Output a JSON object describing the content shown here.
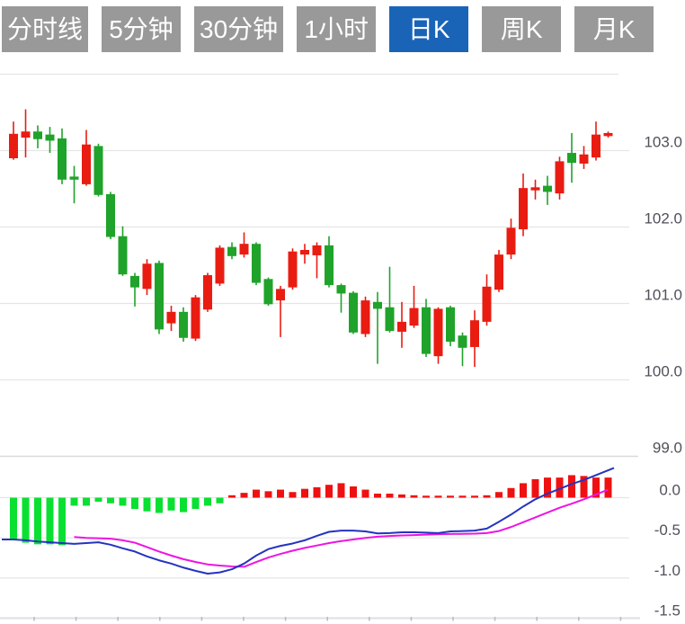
{
  "toolbar": {
    "buttons": [
      {
        "label": "分时线",
        "active": false
      },
      {
        "label": "5分钟",
        "active": false
      },
      {
        "label": "30分钟",
        "active": false
      },
      {
        "label": "1小时",
        "active": false
      },
      {
        "label": "日K",
        "active": true
      },
      {
        "label": "周K",
        "active": false
      },
      {
        "label": "月K",
        "active": false
      }
    ]
  },
  "colors": {
    "up": "#e91c12",
    "down": "#1fa32a",
    "macd_up": "#ef1111",
    "macd_down": "#0ae032",
    "dif_line": "#2433c0",
    "dea_line": "#ee14e2",
    "grid": "#e5e5e7",
    "panel_divider": "#d9d9dc",
    "bottom_axis": "#dcdfe4",
    "tick": "#b6bdc8",
    "axis_text": "#50505a",
    "button_bg": "#999999",
    "button_active_bg": "#1a64b8",
    "button_text": "#ffffff"
  },
  "chart_data": {
    "type": "candlestick+macd",
    "title": "",
    "legend": "none",
    "grid": "on",
    "price_axis": {
      "side": "right",
      "range_shown": [
        99.0,
        104.0
      ],
      "gridline_values": [
        104,
        103,
        102,
        101,
        100,
        99
      ],
      "labels": [
        {
          "text": "103.0",
          "value": 103
        },
        {
          "text": "102.0",
          "value": 102
        },
        {
          "text": "101.0",
          "value": 101
        },
        {
          "text": "100.0",
          "value": 100
        },
        {
          "text": "99.0",
          "value": 99
        }
      ]
    },
    "macd_axis": {
      "side": "right",
      "range_shown": [
        -1.5,
        0.6
      ],
      "gridline_values": [
        0,
        -0.5,
        -1
      ],
      "labels": [
        {
          "text": "0.0",
          "value": 0
        },
        {
          "text": "-0.5",
          "value": -0.5
        },
        {
          "text": "-1.0",
          "value": -1
        },
        {
          "text": "-1.5",
          "value": -1.5
        }
      ]
    },
    "candles_ohlc_note": "each entry is [open, high, low, close]; red=rise green=fall (CN convention)",
    "candles": [
      [
        102.9,
        103.38,
        102.88,
        103.22
      ],
      [
        103.17,
        103.54,
        102.91,
        103.25
      ],
      [
        103.25,
        103.33,
        103.03,
        103.15
      ],
      [
        103.21,
        103.31,
        102.97,
        103.13
      ],
      [
        103.16,
        103.29,
        102.56,
        102.62
      ],
      [
        102.66,
        102.8,
        102.31,
        102.62
      ],
      [
        102.56,
        103.27,
        102.54,
        103.08
      ],
      [
        103.06,
        103.09,
        102.4,
        102.42
      ],
      [
        102.43,
        102.46,
        101.84,
        101.87
      ],
      [
        101.88,
        102.01,
        101.36,
        101.38
      ],
      [
        101.36,
        101.4,
        100.96,
        101.21
      ],
      [
        101.19,
        101.58,
        101.11,
        101.52
      ],
      [
        101.53,
        101.56,
        100.6,
        100.66
      ],
      [
        100.74,
        100.97,
        100.64,
        100.89
      ],
      [
        100.89,
        100.95,
        100.5,
        100.55
      ],
      [
        100.54,
        101.11,
        100.51,
        101.08
      ],
      [
        100.92,
        101.4,
        100.89,
        101.37
      ],
      [
        101.26,
        101.76,
        101.23,
        101.73
      ],
      [
        101.74,
        101.8,
        101.58,
        101.62
      ],
      [
        101.64,
        101.93,
        101.6,
        101.78
      ],
      [
        101.78,
        101.8,
        101.24,
        101.27
      ],
      [
        101.32,
        101.34,
        100.97,
        100.99
      ],
      [
        101.04,
        101.23,
        100.56,
        101.19
      ],
      [
        101.21,
        101.72,
        101.18,
        101.68
      ],
      [
        101.64,
        101.78,
        101.52,
        101.7
      ],
      [
        101.63,
        101.8,
        101.33,
        101.76
      ],
      [
        101.76,
        101.88,
        101.21,
        101.24
      ],
      [
        101.24,
        101.26,
        100.88,
        101.13
      ],
      [
        101.14,
        101.16,
        100.6,
        100.62
      ],
      [
        100.6,
        101.09,
        100.56,
        101.04
      ],
      [
        101.02,
        101.15,
        100.21,
        100.93
      ],
      [
        100.95,
        101.48,
        100.62,
        100.64
      ],
      [
        100.63,
        101.02,
        100.42,
        100.76
      ],
      [
        100.71,
        101.23,
        100.68,
        100.94
      ],
      [
        100.95,
        101.06,
        100.3,
        100.34
      ],
      [
        100.31,
        100.95,
        100.21,
        100.93
      ],
      [
        100.95,
        100.97,
        100.44,
        100.5
      ],
      [
        100.58,
        100.62,
        100.18,
        100.42
      ],
      [
        100.43,
        100.91,
        100.17,
        100.78
      ],
      [
        100.76,
        101.38,
        100.71,
        101.22
      ],
      [
        101.18,
        101.7,
        101.15,
        101.64
      ],
      [
        101.64,
        102.11,
        101.58,
        101.99
      ],
      [
        101.97,
        102.7,
        101.88,
        102.51
      ],
      [
        102.48,
        102.62,
        102.36,
        102.52
      ],
      [
        102.54,
        102.67,
        102.29,
        102.46
      ],
      [
        102.44,
        102.92,
        102.36,
        102.86
      ],
      [
        102.97,
        103.23,
        102.58,
        102.84
      ],
      [
        102.83,
        103.06,
        102.76,
        102.95
      ],
      [
        102.91,
        103.38,
        102.87,
        103.21
      ],
      [
        103.19,
        103.25,
        103.17,
        103.23
      ]
    ],
    "macd": {
      "histogram": [
        -0.53,
        -0.56,
        -0.58,
        -0.58,
        -0.59,
        -0.1,
        -0.1,
        -0.05,
        -0.07,
        -0.1,
        -0.14,
        -0.17,
        -0.19,
        -0.16,
        -0.18,
        -0.14,
        -0.1,
        -0.07,
        0.03,
        0.06,
        0.1,
        0.08,
        0.1,
        0.07,
        0.11,
        0.13,
        0.16,
        0.18,
        0.14,
        0.1,
        0.05,
        0.05,
        0.04,
        0.03,
        0.02,
        0.01,
        0.02,
        0.02,
        0.02,
        0.03,
        0.07,
        0.12,
        0.18,
        0.23,
        0.25,
        0.25,
        0.28,
        0.27,
        0.25,
        0.25
      ],
      "dif": [
        -0.52,
        -0.53,
        -0.545,
        -0.555,
        -0.565,
        -0.575,
        -0.565,
        -0.555,
        -0.585,
        -0.63,
        -0.67,
        -0.73,
        -0.78,
        -0.82,
        -0.87,
        -0.91,
        -0.945,
        -0.93,
        -0.89,
        -0.82,
        -0.72,
        -0.64,
        -0.6,
        -0.57,
        -0.53,
        -0.475,
        -0.425,
        -0.41,
        -0.41,
        -0.42,
        -0.445,
        -0.44,
        -0.43,
        -0.43,
        -0.435,
        -0.44,
        -0.42,
        -0.415,
        -0.41,
        -0.385,
        -0.3,
        -0.21,
        -0.11,
        -0.02,
        0.05,
        0.11,
        0.17,
        0.22,
        0.28,
        0.34
      ],
      "dea": [
        null,
        null,
        null,
        null,
        null,
        -0.49,
        -0.5,
        -0.505,
        -0.51,
        -0.53,
        -0.56,
        -0.615,
        -0.67,
        -0.72,
        -0.765,
        -0.8,
        -0.83,
        -0.845,
        -0.855,
        -0.86,
        -0.8,
        -0.745,
        -0.7,
        -0.66,
        -0.625,
        -0.595,
        -0.565,
        -0.54,
        -0.52,
        -0.5,
        -0.485,
        -0.477,
        -0.47,
        -0.465,
        -0.46,
        -0.455,
        -0.452,
        -0.45,
        -0.448,
        -0.44,
        -0.415,
        -0.365,
        -0.305,
        -0.245,
        -0.185,
        -0.125,
        -0.075,
        -0.02,
        0.04,
        0.1
      ]
    }
  }
}
